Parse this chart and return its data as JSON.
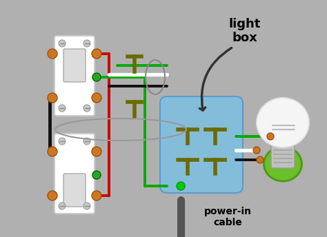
{
  "bg_color": "#b0b0b0",
  "light_box_label": "light\nbox",
  "power_in_label": "power-in\ncable",
  "junction_box_color": "#80bfdf",
  "wire_black": "#111111",
  "wire_red": "#cc0000",
  "wire_white": "#ffffff",
  "wire_green": "#00aa00",
  "wire_dark_olive": "#6b6b00",
  "screw_orange": "#cc7722",
  "screw_gray": "#999999",
  "label_fontsize": 13,
  "arrow_color": "#444444"
}
